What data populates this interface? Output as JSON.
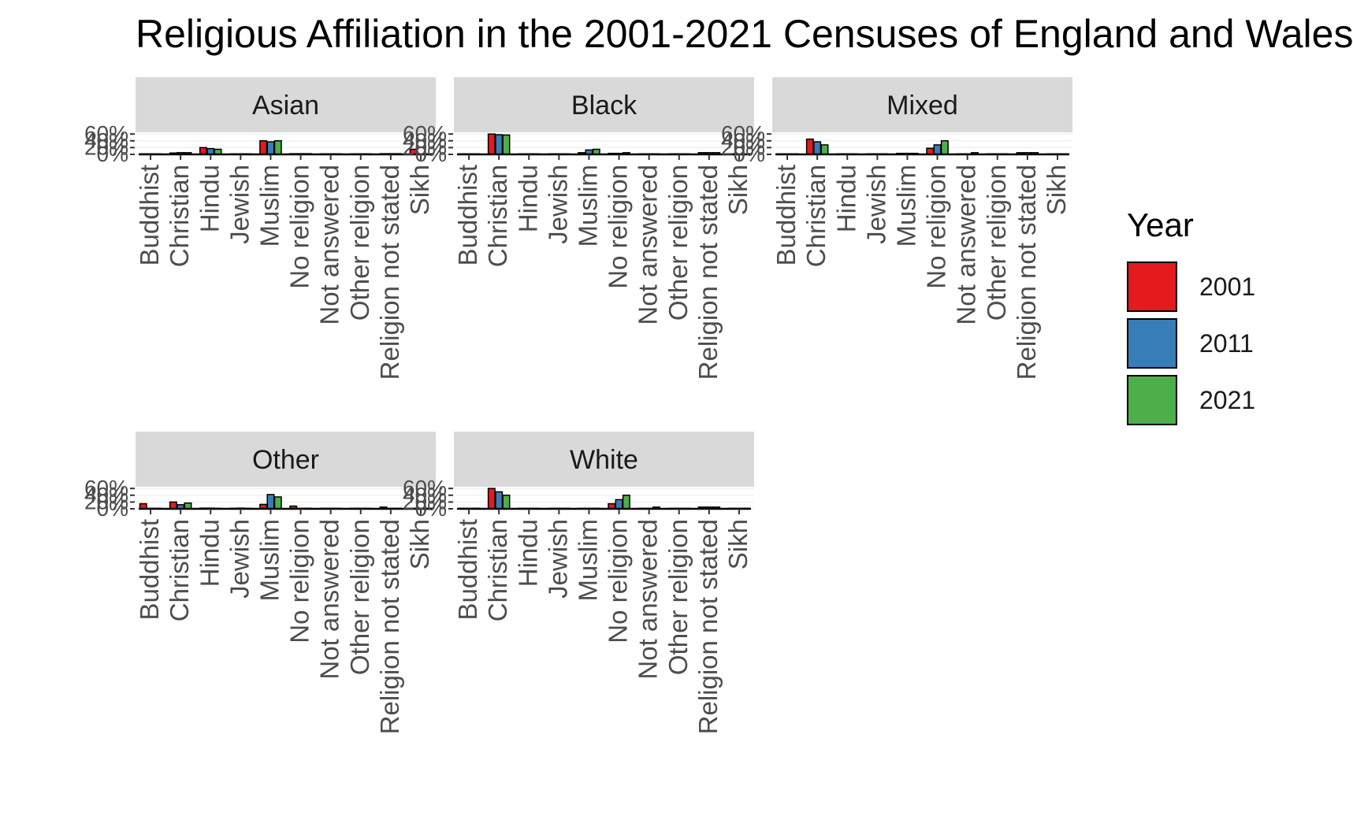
{
  "chart_data": {
    "type": "bar",
    "title": "Religious Affiliation in the 2001-2021 Censuses of England and Wales",
    "xlabel": "",
    "ylabel": "",
    "y_ticks": [
      "0%",
      "20%",
      "40%",
      "60%"
    ],
    "ylim": [
      0,
      65
    ],
    "grid": true,
    "legend": {
      "title": "Year",
      "placement": "right"
    },
    "categories": [
      "Buddhist",
      "Christian",
      "Hindu",
      "Jewish",
      "Muslim",
      "No religion",
      "Not answered",
      "Other religion",
      "Religion not stated",
      "Sikh"
    ],
    "series_colors": {
      "2001": "#E41A1C",
      "2011": "#377EB8",
      "2021": "#4DAF4A"
    },
    "panels": [
      {
        "name": "Asian",
        "series": [
          {
            "name": "2001",
            "values": [
              0,
              4,
              20,
              0,
              40,
              2,
              0,
              0,
              2,
              15
            ]
          },
          {
            "name": "2011",
            "values": [
              0,
              5,
              17,
              0,
              37,
              2,
              0,
              0,
              2,
              0
            ]
          },
          {
            "name": "2021",
            "values": [
              0,
              5,
              15,
              0,
              40,
              2,
              0,
              0,
              2,
              0
            ]
          }
        ]
      },
      {
        "name": "Black",
        "series": [
          {
            "name": "2001",
            "values": [
              0,
              60,
              0,
              0,
              5,
              3,
              0,
              0,
              5,
              0
            ]
          },
          {
            "name": "2011",
            "values": [
              0,
              58,
              0,
              0,
              13,
              3,
              0,
              0,
              5,
              0
            ]
          },
          {
            "name": "2021",
            "values": [
              0,
              57,
              0,
              0,
              15,
              5,
              0,
              0,
              5,
              0
            ]
          }
        ]
      },
      {
        "name": "Mixed",
        "series": [
          {
            "name": "2001",
            "values": [
              0,
              45,
              0,
              0,
              3,
              18,
              0,
              0,
              5,
              0
            ]
          },
          {
            "name": "2011",
            "values": [
              0,
              37,
              0,
              0,
              3,
              28,
              0,
              0,
              5,
              0
            ]
          },
          {
            "name": "2021",
            "values": [
              0,
              28,
              0,
              0,
              3,
              40,
              5,
              0,
              5,
              0
            ]
          }
        ]
      },
      {
        "name": "Other",
        "series": [
          {
            "name": "2001",
            "values": [
              15,
              20,
              2,
              0,
              13,
              8,
              0,
              0,
              5,
              0
            ]
          },
          {
            "name": "2011",
            "values": [
              0,
              12,
              2,
              2,
              42,
              0,
              0,
              0,
              0,
              0
            ]
          },
          {
            "name": "2021",
            "values": [
              0,
              17,
              0,
              0,
              35,
              0,
              0,
              0,
              0,
              0
            ]
          }
        ]
      },
      {
        "name": "White",
        "series": [
          {
            "name": "2001",
            "values": [
              0,
              60,
              0,
              0,
              0,
              15,
              0,
              0,
              5,
              0
            ]
          },
          {
            "name": "2011",
            "values": [
              0,
              50,
              0,
              0,
              0,
              27,
              0,
              0,
              5,
              0
            ]
          },
          {
            "name": "2021",
            "values": [
              0,
              40,
              0,
              0,
              0,
              40,
              5,
              0,
              5,
              0
            ]
          }
        ]
      }
    ]
  }
}
